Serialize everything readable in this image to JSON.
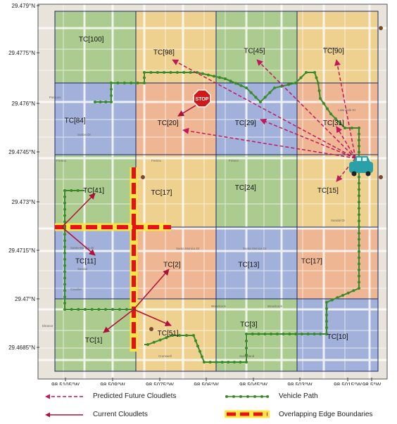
{
  "map": {
    "lat_labels": [
      "29.479°N",
      "29.4775°N",
      "29.476°N",
      "29.4745°N",
      "29.473°N",
      "29.4715°N",
      "29.47°N",
      "29.4685°N"
    ],
    "lon_labels": [
      "98.5105°W",
      "98.509°W",
      "98.5075°W",
      "98.506°W",
      "98.5045°W",
      "98.503°W",
      "98.5015°W",
      "98.5°W"
    ],
    "colors": {
      "green": "#8fbf6a",
      "yellow": "#f2c96a",
      "orange": "#f0a070",
      "blue": "#7f99d9",
      "grid": "#1a2a66",
      "vehicle_path": "#3a8a2a",
      "predicted": "#c0185a",
      "current": "#b0103a",
      "overlap_red": "#e8101a",
      "overlap_yellow": "#ffe640"
    },
    "cells": [
      {
        "id": "tc100",
        "label": "TC[100]",
        "row": 0,
        "col": 0,
        "color": "green"
      },
      {
        "id": "tc98",
        "label": "TC[98]",
        "row": 0,
        "col": 1,
        "color": "yellow"
      },
      {
        "id": "tc45",
        "label": "TC[45]",
        "row": 0,
        "col": 2,
        "color": "green"
      },
      {
        "id": "tc90",
        "label": "TC[90]",
        "row": 0,
        "col": 3,
        "color": "yellow"
      },
      {
        "id": "tc84",
        "label": "TC[84]",
        "row": 1,
        "col": 0,
        "color": "blue"
      },
      {
        "id": "tc20",
        "label": "TC[20]",
        "row": 1,
        "col": 1,
        "color": "orange"
      },
      {
        "id": "tc29",
        "label": "TC[29]",
        "row": 1,
        "col": 2,
        "color": "blue"
      },
      {
        "id": "tc31",
        "label": "TC[31]",
        "row": 1,
        "col": 3,
        "color": "orange"
      },
      {
        "id": "tc41",
        "label": "TC[41]",
        "row": 2,
        "col": 0,
        "color": "green"
      },
      {
        "id": "tc17a",
        "label": "TC[17]",
        "row": 2,
        "col": 1,
        "color": "yellow"
      },
      {
        "id": "tc24",
        "label": "TC[24]",
        "row": 2,
        "col": 2,
        "color": "green"
      },
      {
        "id": "tc15",
        "label": "TC[15]",
        "row": 2,
        "col": 3,
        "color": "yellow"
      },
      {
        "id": "tc11",
        "label": "TC[11]",
        "row": 3,
        "col": 0,
        "color": "blue"
      },
      {
        "id": "tc2",
        "label": "TC[2]",
        "row": 3,
        "col": 1,
        "color": "orange"
      },
      {
        "id": "tc13",
        "label": "TC[13]",
        "row": 3,
        "col": 2,
        "color": "blue"
      },
      {
        "id": "tc17b",
        "label": "TC[17]",
        "row": 3,
        "col": 3,
        "color": "orange"
      },
      {
        "id": "tc1",
        "label": "TC[1]",
        "row": 4,
        "col": 0,
        "color": "green"
      },
      {
        "id": "tc51",
        "label": "TC[51]",
        "row": 4,
        "col": 1,
        "color": "yellow"
      },
      {
        "id": "tc3",
        "label": "TC[3]",
        "row": 4,
        "col": 2,
        "color": "green"
      },
      {
        "id": "tc10",
        "label": "TC[10]",
        "row": 4,
        "col": 3,
        "color": "blue"
      }
    ],
    "streets": [
      "Lawndale Dr",
      "Sutton Dr",
      "Fresno",
      "Fresno",
      "Fresno",
      "Santa Monica Dr",
      "Sealcrest",
      "Sandal",
      "Cavalier",
      "Woodcock",
      "Woodcock",
      "Cromwell",
      "Sunnyland",
      "Eleanor",
      "Fernwood",
      "Santa Monica Dr",
      "Santa Monica Dr",
      "Sandal Dr",
      "Parsons"
    ],
    "stop_sign": "STOP"
  },
  "legend": {
    "predicted": "Predicted Future Cloudlets",
    "current": "Current Cloudlets",
    "vehicle": "Vehicle Path",
    "overlap": "Overlapping Edge Boundaries"
  }
}
